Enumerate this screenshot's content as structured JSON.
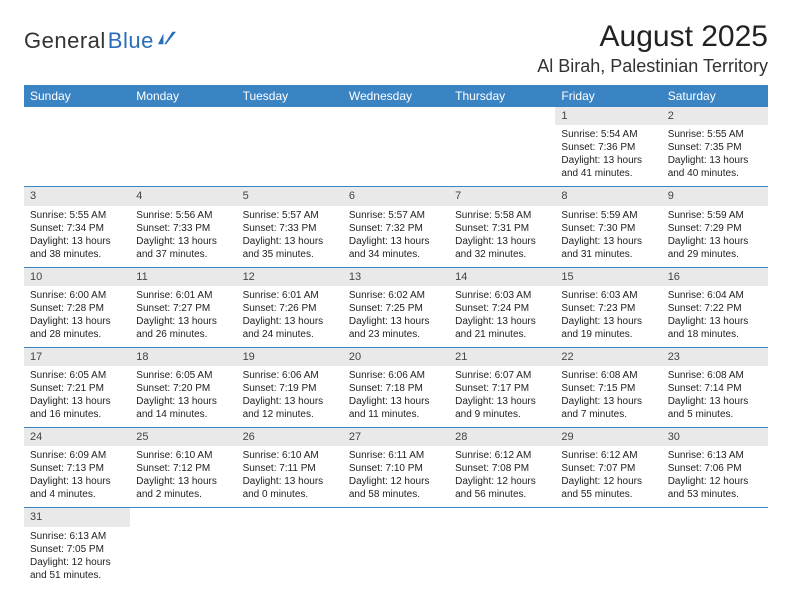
{
  "logo": {
    "text1": "General",
    "text2": "Blue"
  },
  "title": "August 2025",
  "location": "Al Birah, Palestinian Territory",
  "colors": {
    "header_bg": "#3b84c4",
    "header_fg": "#ffffff",
    "daynum_bg": "#e9e9e9",
    "row_divider": "#3b84c4",
    "logo_accent": "#2a6db8",
    "page_bg": "#ffffff"
  },
  "day_headers": [
    "Sunday",
    "Monday",
    "Tuesday",
    "Wednesday",
    "Thursday",
    "Friday",
    "Saturday"
  ],
  "weeks": [
    [
      {
        "n": "",
        "sr": "",
        "ss": "",
        "dl": ""
      },
      {
        "n": "",
        "sr": "",
        "ss": "",
        "dl": ""
      },
      {
        "n": "",
        "sr": "",
        "ss": "",
        "dl": ""
      },
      {
        "n": "",
        "sr": "",
        "ss": "",
        "dl": ""
      },
      {
        "n": "",
        "sr": "",
        "ss": "",
        "dl": ""
      },
      {
        "n": "1",
        "sr": "Sunrise: 5:54 AM",
        "ss": "Sunset: 7:36 PM",
        "dl": "Daylight: 13 hours and 41 minutes."
      },
      {
        "n": "2",
        "sr": "Sunrise: 5:55 AM",
        "ss": "Sunset: 7:35 PM",
        "dl": "Daylight: 13 hours and 40 minutes."
      }
    ],
    [
      {
        "n": "3",
        "sr": "Sunrise: 5:55 AM",
        "ss": "Sunset: 7:34 PM",
        "dl": "Daylight: 13 hours and 38 minutes."
      },
      {
        "n": "4",
        "sr": "Sunrise: 5:56 AM",
        "ss": "Sunset: 7:33 PM",
        "dl": "Daylight: 13 hours and 37 minutes."
      },
      {
        "n": "5",
        "sr": "Sunrise: 5:57 AM",
        "ss": "Sunset: 7:33 PM",
        "dl": "Daylight: 13 hours and 35 minutes."
      },
      {
        "n": "6",
        "sr": "Sunrise: 5:57 AM",
        "ss": "Sunset: 7:32 PM",
        "dl": "Daylight: 13 hours and 34 minutes."
      },
      {
        "n": "7",
        "sr": "Sunrise: 5:58 AM",
        "ss": "Sunset: 7:31 PM",
        "dl": "Daylight: 13 hours and 32 minutes."
      },
      {
        "n": "8",
        "sr": "Sunrise: 5:59 AM",
        "ss": "Sunset: 7:30 PM",
        "dl": "Daylight: 13 hours and 31 minutes."
      },
      {
        "n": "9",
        "sr": "Sunrise: 5:59 AM",
        "ss": "Sunset: 7:29 PM",
        "dl": "Daylight: 13 hours and 29 minutes."
      }
    ],
    [
      {
        "n": "10",
        "sr": "Sunrise: 6:00 AM",
        "ss": "Sunset: 7:28 PM",
        "dl": "Daylight: 13 hours and 28 minutes."
      },
      {
        "n": "11",
        "sr": "Sunrise: 6:01 AM",
        "ss": "Sunset: 7:27 PM",
        "dl": "Daylight: 13 hours and 26 minutes."
      },
      {
        "n": "12",
        "sr": "Sunrise: 6:01 AM",
        "ss": "Sunset: 7:26 PM",
        "dl": "Daylight: 13 hours and 24 minutes."
      },
      {
        "n": "13",
        "sr": "Sunrise: 6:02 AM",
        "ss": "Sunset: 7:25 PM",
        "dl": "Daylight: 13 hours and 23 minutes."
      },
      {
        "n": "14",
        "sr": "Sunrise: 6:03 AM",
        "ss": "Sunset: 7:24 PM",
        "dl": "Daylight: 13 hours and 21 minutes."
      },
      {
        "n": "15",
        "sr": "Sunrise: 6:03 AM",
        "ss": "Sunset: 7:23 PM",
        "dl": "Daylight: 13 hours and 19 minutes."
      },
      {
        "n": "16",
        "sr": "Sunrise: 6:04 AM",
        "ss": "Sunset: 7:22 PM",
        "dl": "Daylight: 13 hours and 18 minutes."
      }
    ],
    [
      {
        "n": "17",
        "sr": "Sunrise: 6:05 AM",
        "ss": "Sunset: 7:21 PM",
        "dl": "Daylight: 13 hours and 16 minutes."
      },
      {
        "n": "18",
        "sr": "Sunrise: 6:05 AM",
        "ss": "Sunset: 7:20 PM",
        "dl": "Daylight: 13 hours and 14 minutes."
      },
      {
        "n": "19",
        "sr": "Sunrise: 6:06 AM",
        "ss": "Sunset: 7:19 PM",
        "dl": "Daylight: 13 hours and 12 minutes."
      },
      {
        "n": "20",
        "sr": "Sunrise: 6:06 AM",
        "ss": "Sunset: 7:18 PM",
        "dl": "Daylight: 13 hours and 11 minutes."
      },
      {
        "n": "21",
        "sr": "Sunrise: 6:07 AM",
        "ss": "Sunset: 7:17 PM",
        "dl": "Daylight: 13 hours and 9 minutes."
      },
      {
        "n": "22",
        "sr": "Sunrise: 6:08 AM",
        "ss": "Sunset: 7:15 PM",
        "dl": "Daylight: 13 hours and 7 minutes."
      },
      {
        "n": "23",
        "sr": "Sunrise: 6:08 AM",
        "ss": "Sunset: 7:14 PM",
        "dl": "Daylight: 13 hours and 5 minutes."
      }
    ],
    [
      {
        "n": "24",
        "sr": "Sunrise: 6:09 AM",
        "ss": "Sunset: 7:13 PM",
        "dl": "Daylight: 13 hours and 4 minutes."
      },
      {
        "n": "25",
        "sr": "Sunrise: 6:10 AM",
        "ss": "Sunset: 7:12 PM",
        "dl": "Daylight: 13 hours and 2 minutes."
      },
      {
        "n": "26",
        "sr": "Sunrise: 6:10 AM",
        "ss": "Sunset: 7:11 PM",
        "dl": "Daylight: 13 hours and 0 minutes."
      },
      {
        "n": "27",
        "sr": "Sunrise: 6:11 AM",
        "ss": "Sunset: 7:10 PM",
        "dl": "Daylight: 12 hours and 58 minutes."
      },
      {
        "n": "28",
        "sr": "Sunrise: 6:12 AM",
        "ss": "Sunset: 7:08 PM",
        "dl": "Daylight: 12 hours and 56 minutes."
      },
      {
        "n": "29",
        "sr": "Sunrise: 6:12 AM",
        "ss": "Sunset: 7:07 PM",
        "dl": "Daylight: 12 hours and 55 minutes."
      },
      {
        "n": "30",
        "sr": "Sunrise: 6:13 AM",
        "ss": "Sunset: 7:06 PM",
        "dl": "Daylight: 12 hours and 53 minutes."
      }
    ],
    [
      {
        "n": "31",
        "sr": "Sunrise: 6:13 AM",
        "ss": "Sunset: 7:05 PM",
        "dl": "Daylight: 12 hours and 51 minutes."
      },
      {
        "n": "",
        "sr": "",
        "ss": "",
        "dl": ""
      },
      {
        "n": "",
        "sr": "",
        "ss": "",
        "dl": ""
      },
      {
        "n": "",
        "sr": "",
        "ss": "",
        "dl": ""
      },
      {
        "n": "",
        "sr": "",
        "ss": "",
        "dl": ""
      },
      {
        "n": "",
        "sr": "",
        "ss": "",
        "dl": ""
      },
      {
        "n": "",
        "sr": "",
        "ss": "",
        "dl": ""
      }
    ]
  ]
}
